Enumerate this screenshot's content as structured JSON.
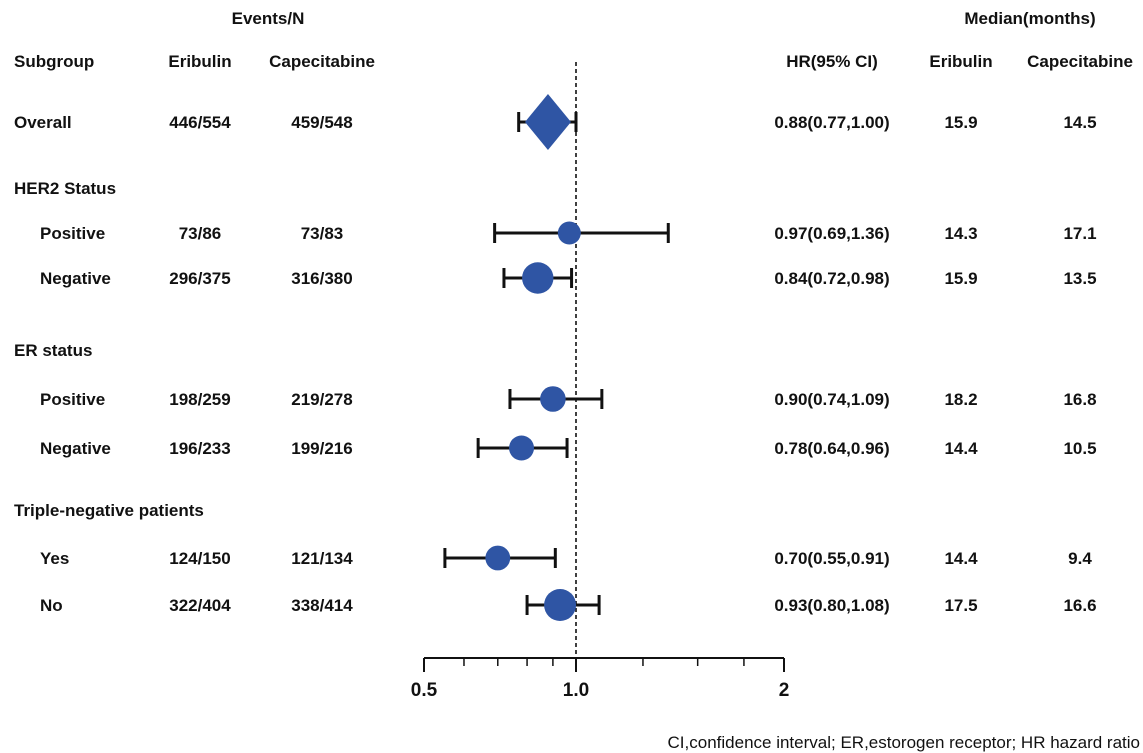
{
  "headers": {
    "events_group": "Events/N",
    "median_group": "Median(months)",
    "subgroup": "Subgroup",
    "eribulin": "Eribulin",
    "capecitabine": "Capecitabine",
    "hr_ci": "HR(95% CI)",
    "median_eribulin": "Eribulin",
    "median_capecitabine": "Capecitabine"
  },
  "footnote": "CI,confidence interval;   ER,estorogen receptor;   HR hazard ratio",
  "colors": {
    "marker": "#2f55a4",
    "line": "#111111"
  },
  "chart_data": {
    "type": "forest",
    "x_scale": "log",
    "reference_line": 1.0,
    "x_ticks": [
      {
        "value": 0.5,
        "label": "0.5"
      },
      {
        "value": 1.0,
        "label": "1.0"
      },
      {
        "value": 2,
        "label": "2"
      }
    ],
    "rows": [
      {
        "kind": "data",
        "label": "Overall",
        "indent": false,
        "events_eribulin": "446/554",
        "events_capecitabine": "459/548",
        "hr": 0.88,
        "ci_low": 0.77,
        "ci_high": 1.0,
        "hr_text": "0.88(0.77,1.00)",
        "median_eribulin": "15.9",
        "median_capecitabine": "14.5",
        "marker": "diamond"
      },
      {
        "kind": "group",
        "label": "HER2 Status"
      },
      {
        "kind": "data",
        "label": "Positive",
        "indent": true,
        "events_eribulin": "73/86",
        "events_capecitabine": "73/83",
        "hr": 0.97,
        "ci_low": 0.69,
        "ci_high": 1.36,
        "hr_text": "0.97(0.69,1.36)",
        "median_eribulin": "14.3",
        "median_capecitabine": "17.1",
        "marker": "circle",
        "weight": 159
      },
      {
        "kind": "data",
        "label": "Negative",
        "indent": true,
        "events_eribulin": "296/375",
        "events_capecitabine": "316/380",
        "hr": 0.84,
        "ci_low": 0.72,
        "ci_high": 0.98,
        "hr_text": "0.84(0.72,0.98)",
        "median_eribulin": "15.9",
        "median_capecitabine": "13.5",
        "marker": "circle",
        "weight": 755
      },
      {
        "kind": "group",
        "label": "ER status"
      },
      {
        "kind": "data",
        "label": "Positive",
        "indent": true,
        "events_eribulin": "198/259",
        "events_capecitabine": "219/278",
        "hr": 0.9,
        "ci_low": 0.74,
        "ci_high": 1.09,
        "hr_text": "0.90(0.74,1.09)",
        "median_eribulin": "18.2",
        "median_capecitabine": "16.8",
        "marker": "circle",
        "weight": 300
      },
      {
        "kind": "data",
        "label": "Negative",
        "indent": true,
        "events_eribulin": "196/233",
        "events_capecitabine": "199/216",
        "hr": 0.78,
        "ci_low": 0.64,
        "ci_high": 0.96,
        "hr_text": "0.78(0.64,0.96)",
        "median_eribulin": "14.4",
        "median_capecitabine": "10.5",
        "marker": "circle",
        "weight": 260
      },
      {
        "kind": "group",
        "label": "Triple-negative patients"
      },
      {
        "kind": "data",
        "label": "Yes",
        "indent": true,
        "events_eribulin": "124/150",
        "events_capecitabine": "121/134",
        "hr": 0.7,
        "ci_low": 0.55,
        "ci_high": 0.91,
        "hr_text": "0.70(0.55,0.91)",
        "median_eribulin": "14.4",
        "median_capecitabine": "9.4",
        "marker": "circle",
        "weight": 245
      },
      {
        "kind": "data",
        "label": "No",
        "indent": true,
        "events_eribulin": "322/404",
        "events_capecitabine": "338/414",
        "hr": 0.93,
        "ci_low": 0.8,
        "ci_high": 1.08,
        "hr_text": "0.93(0.80,1.08)",
        "median_eribulin": "17.5",
        "median_capecitabine": "16.6",
        "marker": "circle",
        "weight": 818
      }
    ]
  }
}
